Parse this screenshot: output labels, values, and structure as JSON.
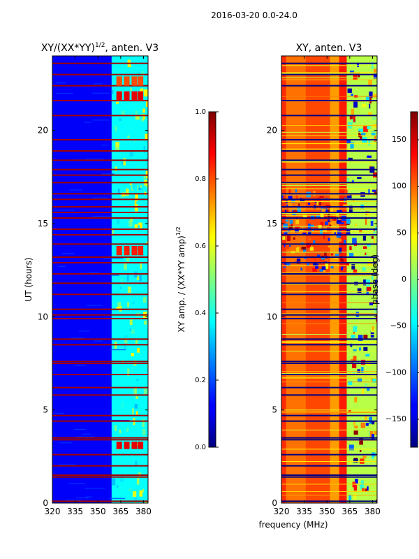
{
  "figure": {
    "suptitle": "2016-03-20 0.0-24.0",
    "shared_xlabel": "frequency (MHz)"
  },
  "chart_data": [
    {
      "type": "heatmap",
      "title_main": "XY/(XX*YY)",
      "title_sup": "1/2",
      "title_rest": ", anten. V3",
      "xlabel": "",
      "ylabel": "UT (hours)",
      "xlim": [
        320,
        383
      ],
      "ylim": [
        0,
        24
      ],
      "xticks": [
        320,
        335,
        350,
        365,
        380
      ],
      "xtick_labels": [
        "320",
        "335",
        "350",
        "365",
        "380"
      ],
      "yticks": [
        0,
        5,
        10,
        15,
        20
      ],
      "ytick_labels": [
        "0",
        "5",
        "10",
        "15",
        "20"
      ],
      "colormap": "jet",
      "colorbar": {
        "label_main": "XY amp. / (XX*YY amp)",
        "label_sup": "1/2",
        "range": [
          0.0,
          1.0
        ],
        "ticks": [
          0.0,
          0.2,
          0.4,
          0.6,
          0.8,
          1.0
        ],
        "tick_labels": [
          "0.0",
          "0.2",
          "0.4",
          "0.6",
          "0.8",
          "1.0"
        ]
      },
      "bands": [
        {
          "f0": 320,
          "f1": 359,
          "value": 0.12
        },
        {
          "f0": 359,
          "f1": 383,
          "value": 0.38
        }
      ],
      "flagged_rows_hours": [
        0.1,
        1.4,
        1.5,
        2.0,
        2.6,
        3.4,
        3.5,
        4.4,
        4.7,
        5.8,
        6.2,
        6.9,
        7.5,
        7.6,
        8.5,
        8.8,
        9.9,
        10.1,
        10.4,
        11.2,
        11.8,
        12.3,
        12.9,
        13.2,
        13.9,
        14.4,
        14.7,
        15.3,
        15.6,
        15.9,
        16.3,
        16.6,
        17.2,
        17.6,
        17.9,
        18.4,
        18.9,
        19.5,
        20.8,
        21.6,
        22.4,
        23.0,
        23.6
      ],
      "hot_blocks": [
        {
          "t0": 2.9,
          "t1": 3.3,
          "value": 0.9
        },
        {
          "t0": 13.3,
          "t1": 13.8,
          "value": 0.85
        },
        {
          "t0": 21.6,
          "t1": 22.1,
          "value": 0.9
        },
        {
          "t0": 22.4,
          "t1": 22.9,
          "value": 0.8
        }
      ],
      "hot_block_freqs": [
        364,
        369,
        374,
        378
      ]
    },
    {
      "type": "heatmap",
      "title": "XY, anten. V3",
      "xlabel": "frequency (MHz)",
      "ylabel": "",
      "xlim": [
        320,
        383
      ],
      "ylim": [
        0,
        24
      ],
      "xticks": [
        320,
        335,
        350,
        365,
        380
      ],
      "xtick_labels": [
        "320",
        "335",
        "350",
        "365",
        "380"
      ],
      "yticks": [
        0,
        5,
        10,
        15,
        20
      ],
      "ytick_labels": [
        "0",
        "5",
        "10",
        "15",
        "20"
      ],
      "colormap": "jet",
      "colorbar": {
        "label": "phase (deg)",
        "range": [
          -180,
          180
        ],
        "ticks": [
          -150,
          -100,
          -50,
          0,
          50,
          100,
          150
        ],
        "tick_labels": [
          "−150",
          "−100",
          "−50",
          "0",
          "50",
          "100",
          "150"
        ]
      },
      "bands": [
        {
          "f0": 320,
          "f1": 323,
          "value": 120
        },
        {
          "f0": 323,
          "f1": 336,
          "value": 95
        },
        {
          "f0": 336,
          "f1": 352,
          "value": 110
        },
        {
          "f0": 352,
          "f1": 358,
          "value": 80
        },
        {
          "f0": 358,
          "f1": 363,
          "value": 125
        },
        {
          "f0": 363,
          "f1": 383,
          "value": 20
        }
      ],
      "disturbed_interval_hours": [
        12.4,
        16.8
      ],
      "flagged_rows_hours": [
        0.1,
        1.4,
        1.5,
        2.0,
        2.6,
        3.4,
        3.5,
        4.4,
        4.7,
        5.8,
        6.2,
        6.9,
        7.5,
        7.6,
        8.5,
        8.8,
        9.9,
        10.1,
        10.4,
        11.2,
        11.8,
        12.3,
        12.9,
        13.2,
        13.9,
        14.4,
        14.7,
        15.3,
        15.6,
        15.9,
        16.3,
        16.6,
        17.2,
        17.6,
        17.9,
        18.4,
        18.9,
        19.5,
        20.8,
        21.6,
        22.4,
        23.0,
        23.6
      ]
    }
  ]
}
